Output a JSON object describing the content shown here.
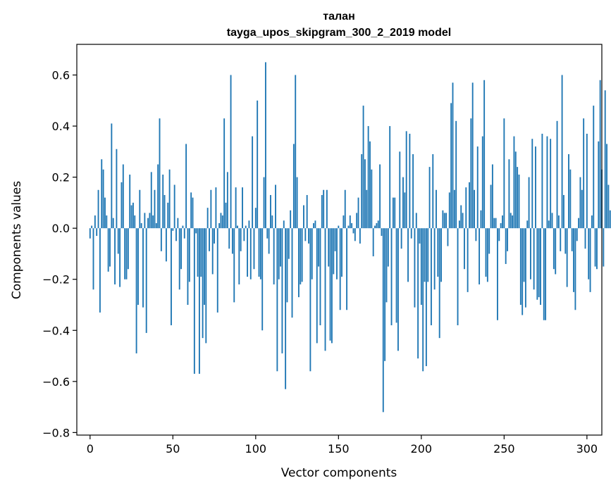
{
  "chart_data": {
    "type": "bar",
    "title": "талан",
    "subtitle": "tayga_upos_skipgram_300_2_2019 model",
    "xlabel": "Vector components",
    "ylabel": "Components values",
    "xlim": [
      -8,
      309
    ],
    "ylim": [
      -0.81,
      0.72
    ],
    "xticks": [
      0,
      50,
      100,
      150,
      200,
      250,
      300
    ],
    "xtick_labels": [
      "0",
      "50",
      "100",
      "150",
      "200",
      "250",
      "300"
    ],
    "yticks": [
      -0.8,
      -0.6,
      -0.4,
      -0.2,
      0.0,
      0.2,
      0.4,
      0.6
    ],
    "ytick_labels": [
      "−0.8",
      "−0.6",
      "−0.4",
      "−0.2",
      "0.0",
      "0.2",
      "0.4",
      "0.6"
    ],
    "bar_color": "#1f77b4",
    "grid": false,
    "values": [
      -0.04,
      0.01,
      -0.24,
      0.05,
      -0.03,
      0.15,
      -0.33,
      0.27,
      0.23,
      0.12,
      0.05,
      -0.17,
      -0.15,
      0.41,
      0.04,
      -0.22,
      0.31,
      -0.1,
      -0.23,
      0.18,
      0.25,
      -0.2,
      -0.2,
      -0.16,
      0.21,
      0.09,
      0.1,
      0.05,
      -0.49,
      -0.3,
      0.15,
      0.02,
      -0.31,
      0.06,
      -0.41,
      0.04,
      0.06,
      0.22,
      0.05,
      0.15,
      0.02,
      0.25,
      0.43,
      -0.09,
      0.21,
      0.13,
      -0.13,
      0.1,
      0.23,
      -0.38,
      -0.01,
      0.17,
      -0.05,
      0.04,
      -0.24,
      -0.16,
      0.01,
      -0.04,
      0.33,
      -0.3,
      -0.21,
      0.14,
      0.12,
      -0.57,
      -0.02,
      -0.19,
      -0.57,
      -0.19,
      -0.43,
      -0.3,
      -0.45,
      0.08,
      -0.09,
      0.15,
      -0.18,
      -0.06,
      0.16,
      -0.33,
      0.02,
      0.06,
      0.05,
      0.43,
      0.1,
      0.22,
      -0.08,
      0.6,
      -0.1,
      -0.29,
      0.16,
      0.01,
      -0.22,
      -0.09,
      0.16,
      -0.05,
      0.01,
      -0.19,
      0.03,
      -0.2,
      0.36,
      -0.16,
      0.08,
      0.5,
      -0.19,
      -0.2,
      -0.4,
      0.2,
      0.65,
      -0.04,
      -0.1,
      0.13,
      0.05,
      -0.22,
      0.17,
      -0.56,
      -0.2,
      -0.15,
      -0.49,
      0.03,
      -0.63,
      -0.29,
      -0.12,
      0.07,
      -0.35,
      0.33,
      0.6,
      0.2,
      -0.27,
      -0.22,
      -0.21,
      0.09,
      -0.05,
      0.13,
      -0.06,
      -0.56,
      -0.2,
      0.02,
      0.03,
      -0.45,
      -0.15,
      -0.38,
      0.13,
      0.15,
      -0.48,
      0.15,
      -0.15,
      -0.44,
      -0.45,
      -0.18,
      -0.09,
      -0.2,
      0.01,
      -0.32,
      -0.19,
      0.05,
      0.15,
      -0.32,
      0.01,
      0.05,
      0.02,
      -0.02,
      -0.05,
      0.06,
      0.12,
      -0.06,
      0.29,
      0.48,
      0.27,
      0.15,
      0.4,
      0.34,
      0.23,
      -0.11,
      0.01,
      0.02,
      0.03,
      0.25,
      -0.03,
      -0.72,
      -0.52,
      -0.29,
      -0.15,
      0.4,
      -0.38,
      0.12,
      0.12,
      -0.37,
      -0.48,
      0.3,
      -0.08,
      0.2,
      0.14,
      0.38,
      -0.21,
      0.37,
      -0.04,
      0.29,
      -0.31,
      0.06,
      -0.51,
      -0.06,
      -0.3,
      -0.56,
      -0.21,
      -0.54,
      -0.21,
      0.24,
      -0.38,
      0.29,
      -0.24,
      0.15,
      -0.19,
      -0.43,
      -0.21,
      0.07,
      0.06,
      0.06,
      -0.07,
      0.14,
      0.49,
      0.57,
      0.15,
      0.42,
      -0.38,
      0.03,
      0.09,
      0.06,
      -0.16,
      0.16,
      -0.25,
      0.18,
      0.43,
      0.57,
      0.15,
      -0.05,
      0.32,
      -0.22,
      0.07,
      0.36,
      0.58,
      -0.19,
      -0.21,
      -0.1,
      0.17,
      0.25,
      0.04,
      0.04,
      -0.36,
      -0.05,
      0.02,
      0.05,
      0.43,
      -0.14,
      -0.09,
      0.27,
      0.06,
      0.05,
      0.36,
      0.3,
      0.24,
      0.21,
      -0.3,
      -0.34,
      -0.21,
      -0.31,
      0.03,
      0.2,
      -0.2,
      0.35,
      -0.24,
      0.32,
      -0.28,
      -0.27,
      -0.3,
      0.37,
      -0.36,
      -0.36,
      0.36,
      0.03,
      0.35,
      0.06,
      -0.16,
      -0.18,
      0.42,
      0.05,
      -0.09,
      0.6,
      0.13,
      -0.1,
      -0.23,
      0.29,
      0.23,
      -0.09,
      -0.25,
      -0.32,
      -0.05,
      0.04,
      0.2,
      0.15,
      0.43,
      -0.08,
      0.37,
      -0.2,
      -0.25,
      0.05,
      0.48,
      -0.15,
      -0.16,
      0.34,
      0.58,
      0.23,
      -0.15,
      0.54,
      0.33,
      0.17,
      0.07,
      -0.21,
      -0.39
    ]
  }
}
